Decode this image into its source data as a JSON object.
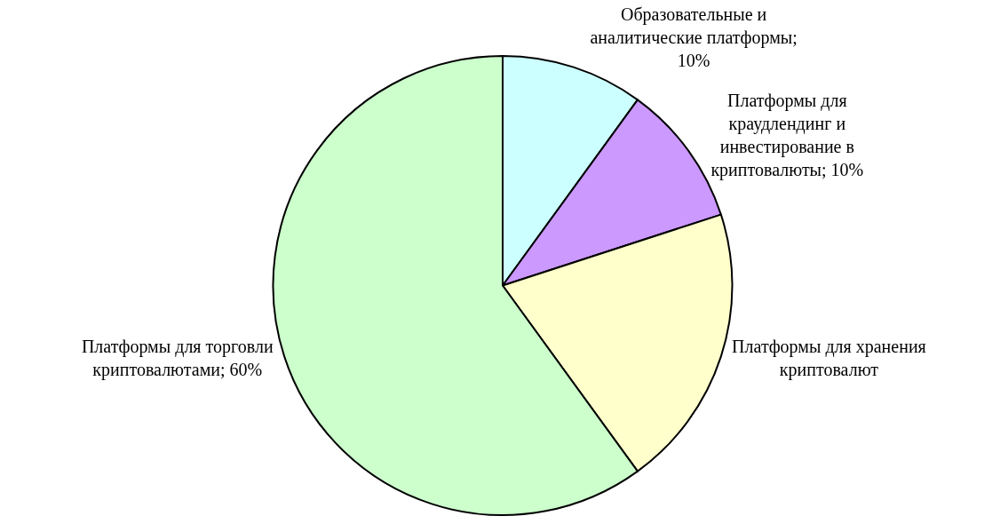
{
  "chart_data": {
    "type": "pie",
    "categories": [
      "Образовательные и аналитические платформы; 10%",
      "Платформы для краудлендинг и инвестирование в криптовалюты; 10%",
      "Платформы для хранения криптовалют",
      "Платформы для торговли криптовалютами; 60%"
    ],
    "values": [
      10,
      10,
      20,
      60
    ],
    "colors": [
      "#ccffff",
      "#cc99ff",
      "#ffffcc",
      "#ccffcc"
    ],
    "legend": false
  }
}
